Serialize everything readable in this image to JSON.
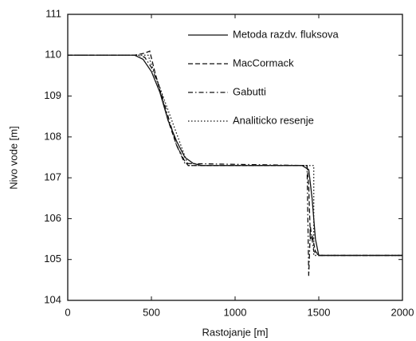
{
  "chart_data": {
    "type": "line",
    "xlabel": "Rastojanje [m]",
    "ylabel": "Nivo vode [m]",
    "xlim": [
      0,
      2000
    ],
    "xticks": [
      0,
      500,
      1000,
      1500,
      2000
    ],
    "ylim": [
      104,
      111
    ],
    "yticks": [
      104,
      105,
      106,
      107,
      108,
      109,
      110,
      111
    ],
    "legend": "upper right",
    "series": [
      {
        "name": "Metoda razdv. fluksova",
        "color": "#111111",
        "dash": "solid",
        "x": [
          0,
          400,
          450,
          500,
          550,
          600,
          650,
          700,
          750,
          800,
          1400,
          1440,
          1460,
          1480,
          1500,
          2000
        ],
        "values": [
          110,
          110,
          109.9,
          109.6,
          109.1,
          108.4,
          107.9,
          107.5,
          107.35,
          107.3,
          107.3,
          107.2,
          106.5,
          105.5,
          105.1,
          105.1
        ]
      },
      {
        "name": "MacCormack",
        "color": "#111111",
        "dash": "dashed",
        "x": [
          0,
          400,
          460,
          490,
          520,
          560,
          600,
          650,
          700,
          720,
          1430,
          1440,
          1450,
          1460,
          1480,
          1500,
          2000
        ],
        "values": [
          110,
          110,
          110.05,
          110.1,
          109.6,
          109,
          108.4,
          107.8,
          107.4,
          107.3,
          107.3,
          106.8,
          105.5,
          105.6,
          105.2,
          105.1,
          105.1
        ]
      },
      {
        "name": "Gabutti",
        "color": "#111111",
        "dash": "dashdot",
        "x": [
          0,
          420,
          460,
          500,
          550,
          600,
          650,
          700,
          1430,
          1440,
          1450,
          1470,
          1500,
          2000
        ],
        "values": [
          110,
          110,
          109.95,
          109.7,
          109.2,
          108.5,
          107.8,
          107.35,
          107.3,
          104.6,
          105.8,
          105.2,
          105.1,
          105.1
        ]
      },
      {
        "name": "Analiticko resenje",
        "color": "#111111",
        "dash": "dotted",
        "x": [
          0,
          480,
          720,
          1470,
          1470,
          2000
        ],
        "values": [
          110,
          110,
          107.3,
          107.3,
          105.1,
          105.1
        ]
      }
    ]
  }
}
